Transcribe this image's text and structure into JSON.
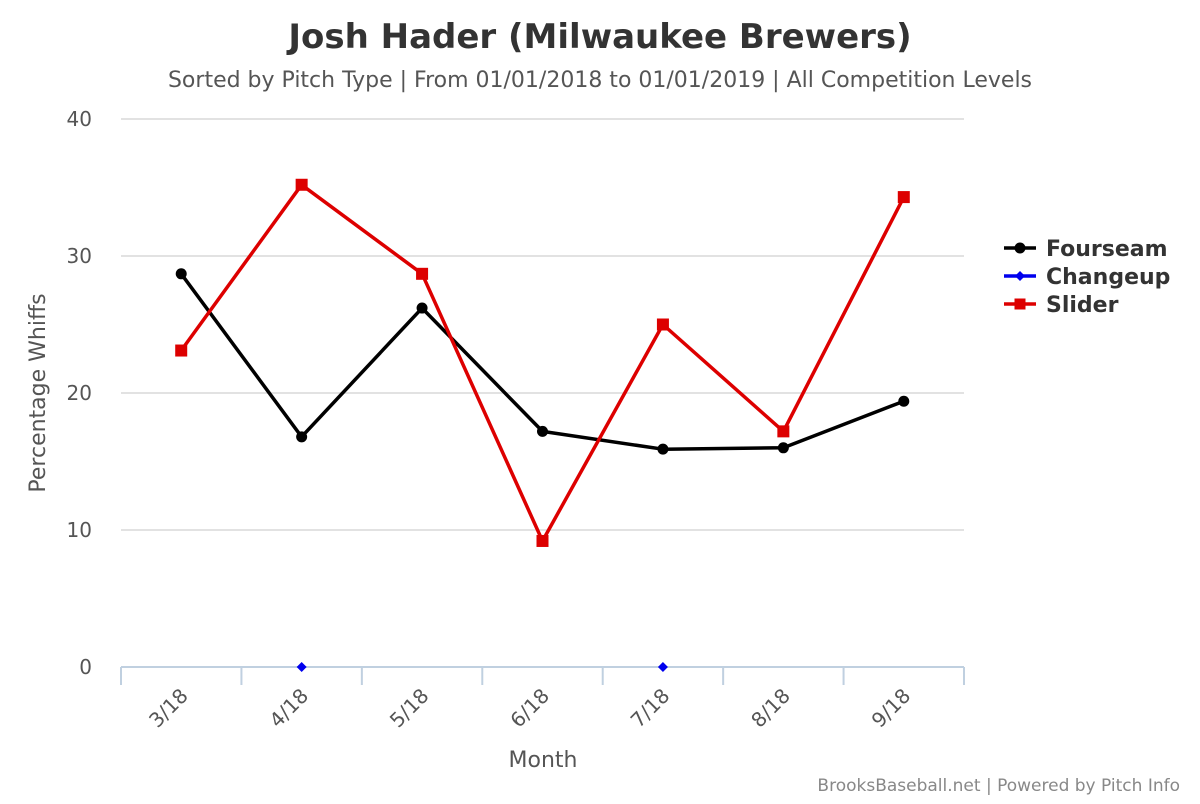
{
  "chart_data": {
    "type": "line",
    "title": "Josh Hader (Milwaukee Brewers)",
    "subtitle": "Sorted by Pitch Type | From 01/01/2018 to 01/01/2019 | All Competition Levels",
    "xlabel": "Month",
    "ylabel": "Percentage Whiffs",
    "categories": [
      "3/18",
      "4/18",
      "5/18",
      "6/18",
      "7/18",
      "8/18",
      "9/18"
    ],
    "ylim": [
      0,
      40
    ],
    "yticks": [
      0,
      10,
      20,
      30,
      40
    ],
    "grid": true,
    "legend_position": "right",
    "series": [
      {
        "name": "Fourseam",
        "color": "#000000",
        "marker": "circle",
        "values": [
          28.7,
          16.8,
          26.2,
          17.2,
          15.9,
          16.0,
          19.4
        ]
      },
      {
        "name": "Changeup",
        "color": "#0000ee",
        "marker": "diamond",
        "values": [
          null,
          0.0,
          null,
          null,
          0.0,
          null,
          null
        ]
      },
      {
        "name": "Slider",
        "color": "#dd0000",
        "marker": "square",
        "values": [
          23.1,
          35.2,
          28.7,
          9.2,
          25.0,
          17.2,
          34.3
        ]
      }
    ],
    "credits": "BrooksBaseball.net | Powered by Pitch Info"
  }
}
